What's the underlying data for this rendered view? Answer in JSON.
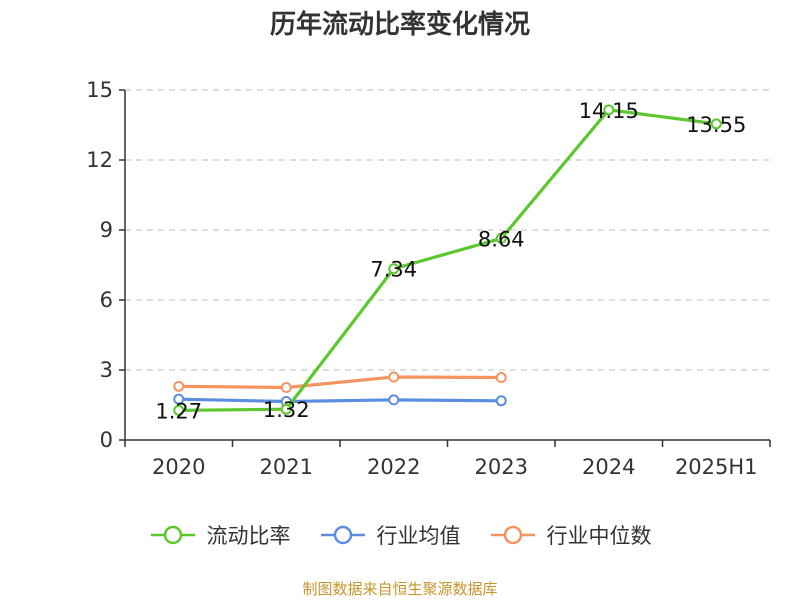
{
  "chart_data": {
    "type": "line",
    "title": "历年流动比率变化情况",
    "categories": [
      "2020",
      "2021",
      "2022",
      "2023",
      "2024",
      "2025H1"
    ],
    "ylim": [
      0,
      15
    ],
    "yticks": [
      "0",
      "3",
      "6",
      "9",
      "12",
      "15"
    ],
    "grid": true,
    "legend_position": "bottom",
    "series": [
      {
        "name": "流动比率",
        "color": "#5cc72e",
        "values": [
          1.27,
          1.32,
          7.34,
          8.64,
          14.15,
          13.55
        ],
        "labels": [
          "1.27",
          "1.32",
          "7.34",
          "8.64",
          "14.15",
          "13.55"
        ]
      },
      {
        "name": "行业均值",
        "color": "#5b8ee0",
        "values": [
          1.75,
          1.65,
          1.72,
          1.68,
          null,
          null
        ]
      },
      {
        "name": "行业中位数",
        "color": "#f4945e",
        "values": [
          2.3,
          2.25,
          2.7,
          2.68,
          null,
          null
        ]
      }
    ]
  },
  "source_note": "制图数据来自恒生聚源数据库"
}
